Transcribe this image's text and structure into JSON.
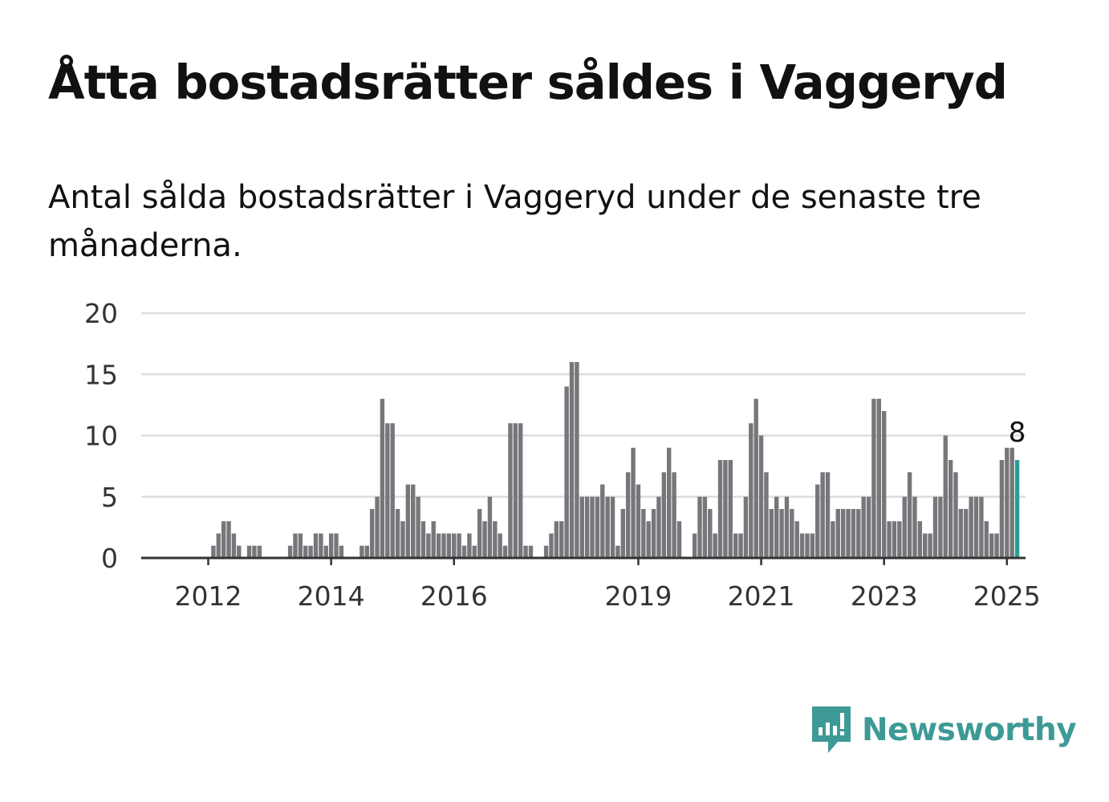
{
  "title": "Åtta bostadsrätter såldes i Vaggeryd",
  "subtitle": "Antal sålda bostadsrätter i Vaggeryd under de senaste tre månaderna.",
  "brand": {
    "name": "Newsworthy",
    "icon": "newsworthy-logo-icon",
    "color": "#3d9a96"
  },
  "chart_data": {
    "type": "bar",
    "title": "",
    "xlabel": "",
    "ylabel": "",
    "ylim": [
      0,
      20
    ],
    "y_ticks": [
      "0",
      "5",
      "10",
      "15",
      "20"
    ],
    "x_ticks": [
      {
        "label": "2012",
        "index": 4
      },
      {
        "label": "2014",
        "index": 28
      },
      {
        "label": "2016",
        "index": 52
      },
      {
        "label": "2019",
        "index": 88
      },
      {
        "label": "2021",
        "index": 112
      },
      {
        "label": "2023",
        "index": 136
      },
      {
        "label": "2025",
        "index": 160
      }
    ],
    "grid": true,
    "bar_color": "#77767b",
    "highlight_color": "#2a9d96",
    "highlight_label": "8",
    "values": [
      0,
      0,
      0,
      0,
      0,
      1,
      2,
      3,
      3,
      2,
      1,
      0,
      1,
      1,
      1,
      0,
      0,
      0,
      0,
      0,
      1,
      2,
      2,
      1,
      1,
      2,
      2,
      1,
      2,
      2,
      1,
      0,
      0,
      0,
      1,
      1,
      4,
      5,
      13,
      11,
      11,
      4,
      3,
      6,
      6,
      5,
      3,
      2,
      3,
      2,
      2,
      2,
      2,
      2,
      1,
      2,
      1,
      4,
      3,
      5,
      3,
      2,
      1,
      11,
      11,
      11,
      1,
      1,
      0,
      0,
      1,
      2,
      3,
      3,
      14,
      16,
      16,
      5,
      5,
      5,
      5,
      6,
      5,
      5,
      1,
      4,
      7,
      9,
      6,
      4,
      3,
      4,
      5,
      7,
      9,
      7,
      3,
      0,
      0,
      2,
      5,
      5,
      4,
      2,
      8,
      8,
      8,
      2,
      2,
      5,
      11,
      13,
      10,
      7,
      4,
      5,
      4,
      5,
      4,
      3,
      2,
      2,
      2,
      6,
      7,
      7,
      3,
      4,
      4,
      4,
      4,
      4,
      5,
      5,
      13,
      13,
      12,
      3,
      3,
      3,
      5,
      7,
      5,
      3,
      2,
      2,
      5,
      5,
      10,
      8,
      7,
      4,
      4,
      5,
      5,
      5,
      3,
      2,
      2,
      8,
      9,
      9,
      8
    ]
  }
}
